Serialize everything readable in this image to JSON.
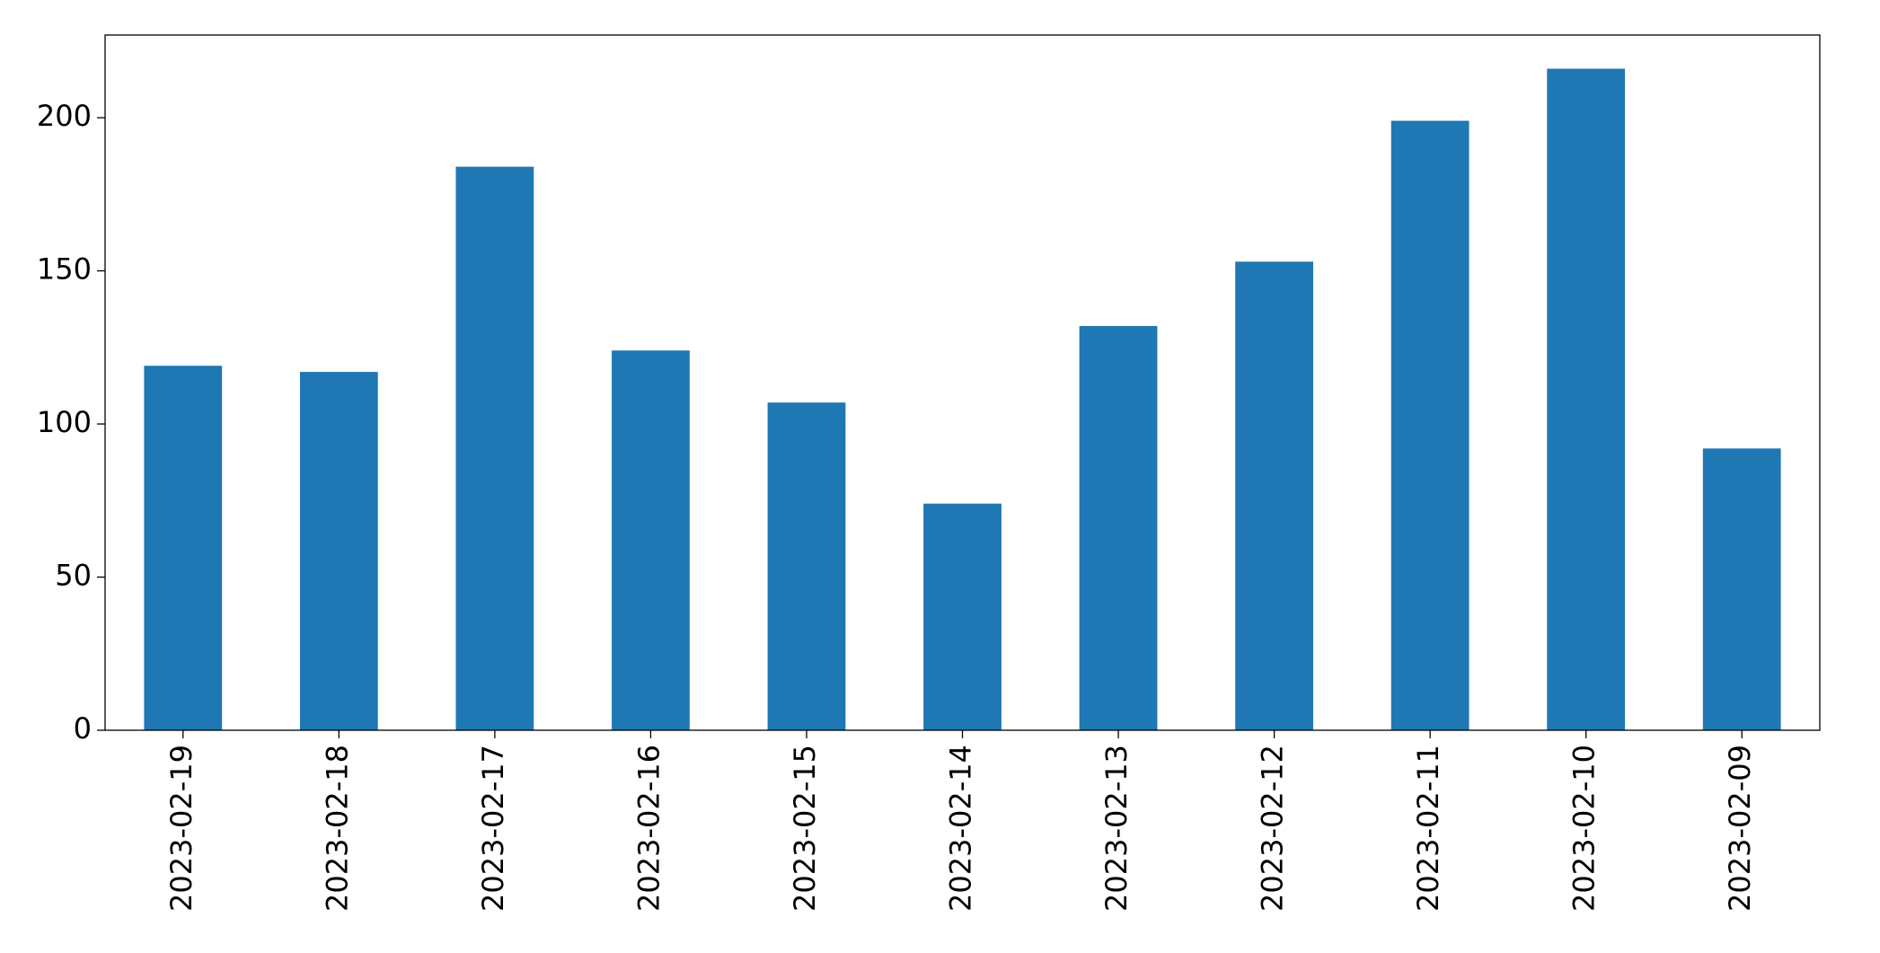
{
  "chart_data": {
    "type": "bar",
    "categories": [
      "2023-02-19",
      "2023-02-18",
      "2023-02-17",
      "2023-02-16",
      "2023-02-15",
      "2023-02-14",
      "2023-02-13",
      "2023-02-12",
      "2023-02-11",
      "2023-02-10",
      "2023-02-09"
    ],
    "values": [
      119,
      117,
      184,
      124,
      107,
      74,
      132,
      153,
      199,
      216,
      92
    ],
    "color": "#1f77b4",
    "ylim": [
      0,
      227
    ],
    "yticks": [
      0,
      50,
      100,
      150,
      200
    ],
    "grid": false
  }
}
